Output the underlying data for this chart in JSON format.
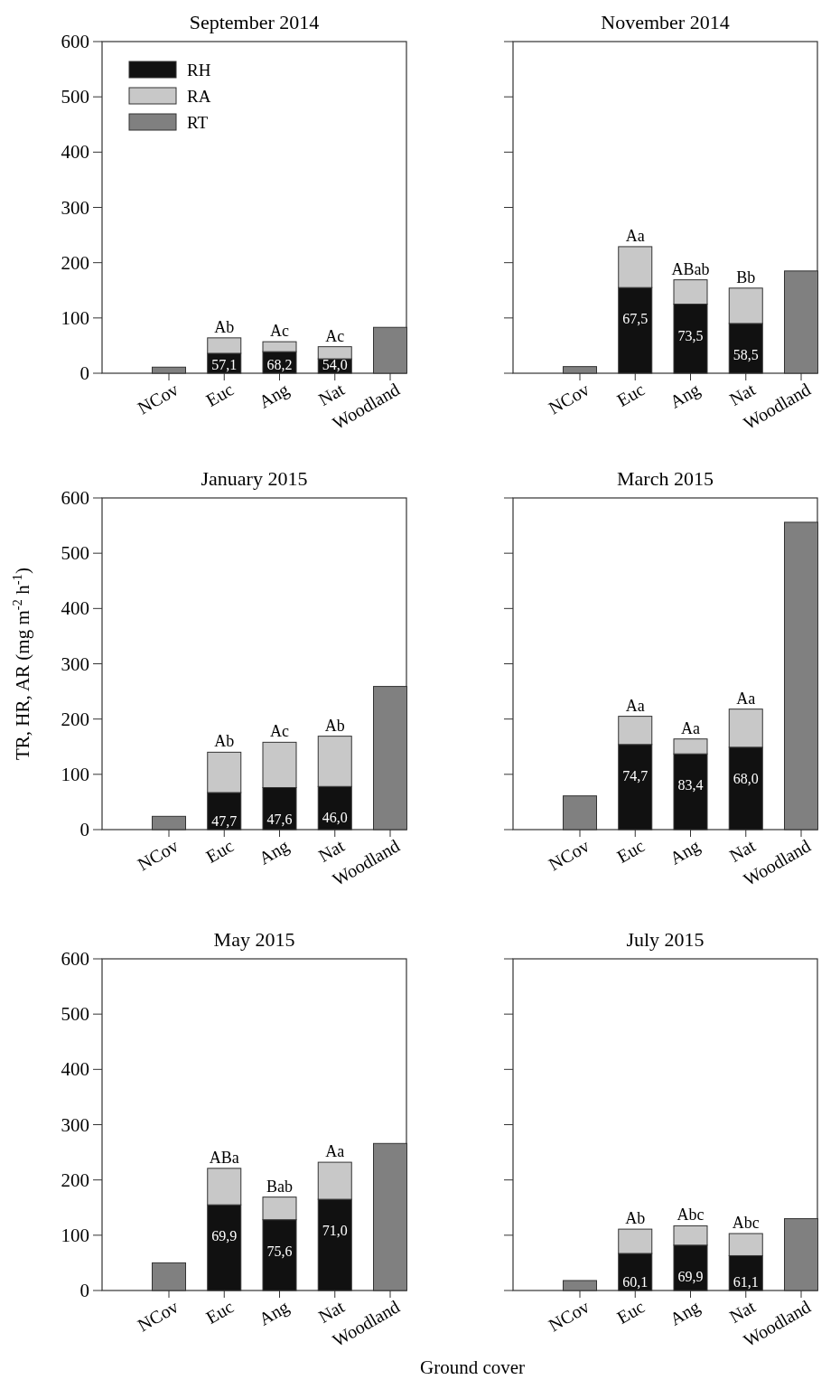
{
  "chart_data": [
    {
      "type": "bar",
      "title": "September 2014",
      "stacked": true,
      "legend": "top left",
      "categories": [
        "NCov",
        "Euc",
        "Ang",
        "Nat",
        "Woodland"
      ],
      "ylim": [
        0,
        600
      ],
      "yticks": [
        0,
        100,
        200,
        300,
        400,
        500,
        600
      ],
      "series": [
        {
          "name": "RH",
          "color": "#111111",
          "values": [
            null,
            36,
            39,
            26,
            null
          ]
        },
        {
          "name": "RA",
          "color": "#c8c8c8",
          "values": [
            null,
            28,
            18,
            22,
            null
          ]
        },
        {
          "name": "RT",
          "color": "#808080",
          "values": [
            11,
            null,
            null,
            null,
            83
          ]
        }
      ],
      "annotations": [
        {
          "text": "Ab",
          "x": "Euc",
          "y": 64
        },
        {
          "text": "Ac",
          "x": "Ang",
          "y": 57
        },
        {
          "text": "Ac",
          "x": "Nat",
          "y": 48
        },
        {
          "text": "57,1",
          "x": "Euc",
          "y": 36
        },
        {
          "text": "68,2",
          "x": "Ang",
          "y": 39
        },
        {
          "text": "54,0",
          "x": "Nat",
          "y": 26
        }
      ]
    },
    {
      "type": "bar",
      "title": "November 2014",
      "stacked": true,
      "tick_labels": "x",
      "categories": [
        "NCov",
        "Euc",
        "Ang",
        "Nat",
        "Woodland"
      ],
      "ylim": [
        0,
        600
      ],
      "yticks": [
        0,
        100,
        200,
        300,
        400,
        500,
        600
      ],
      "series": [
        {
          "color": "#111111",
          "values": [
            null,
            155,
            125,
            90,
            null
          ]
        },
        {
          "color": "#c8c8c8",
          "values": [
            null,
            74,
            44,
            64,
            null
          ]
        },
        {
          "color": "#808080",
          "values": [
            12,
            null,
            null,
            null,
            185
          ]
        }
      ],
      "annotations": [
        {
          "text": "Aa",
          "x": "Euc",
          "y": 229
        },
        {
          "text": "ABab",
          "x": "Ang",
          "y": 169
        },
        {
          "text": "Bb",
          "x": "Nat",
          "y": 154
        },
        {
          "text": "67,5",
          "x": "Euc",
          "y": 155
        },
        {
          "text": "73,5",
          "x": "Ang",
          "y": 125
        },
        {
          "text": "58,5",
          "x": "Nat",
          "y": 90
        }
      ]
    },
    {
      "type": "bar",
      "title": "January 2015",
      "stacked": true,
      "ylabel": "TR, HR, AR (mg m$^{-2}$ h$^{-1}$)",
      "categories": [
        "NCov",
        "Euc",
        "Ang",
        "Nat",
        "Woodland"
      ],
      "ylim": [
        0,
        600
      ],
      "yticks": [
        0,
        100,
        200,
        300,
        400,
        500,
        600
      ],
      "series": [
        {
          "color": "#111111",
          "values": [
            null,
            67,
            76,
            78,
            null
          ]
        },
        {
          "color": "#c8c8c8",
          "values": [
            null,
            73,
            82,
            91,
            null
          ]
        },
        {
          "color": "#808080",
          "values": [
            24,
            null,
            null,
            null,
            259
          ]
        }
      ],
      "annotations": [
        {
          "text": "Ab",
          "x": "Euc",
          "y": 140
        },
        {
          "text": "Ac",
          "x": "Ang",
          "y": 158
        },
        {
          "text": "Ab",
          "x": "Nat",
          "y": 169
        },
        {
          "text": "47,7",
          "x": "Euc",
          "y": 67
        },
        {
          "text": "47,6",
          "x": "Ang",
          "y": 76
        },
        {
          "text": "46,0",
          "x": "Nat",
          "y": 78
        }
      ]
    },
    {
      "type": "bar",
      "title": "March 2015",
      "stacked": true,
      "tick_labels": "x",
      "categories": [
        "NCov",
        "Euc",
        "Ang",
        "Nat",
        "Woodland"
      ],
      "ylim": [
        0,
        600
      ],
      "yticks": [
        0,
        100,
        200,
        300,
        400,
        500,
        600
      ],
      "series": [
        {
          "color": "#111111",
          "values": [
            null,
            154,
            137,
            149,
            null
          ]
        },
        {
          "color": "#c8c8c8",
          "values": [
            null,
            51,
            27,
            69,
            null
          ]
        },
        {
          "color": "#808080",
          "values": [
            61,
            null,
            null,
            null,
            556
          ]
        }
      ],
      "annotations": [
        {
          "text": "Aa",
          "x": "Euc",
          "y": 205
        },
        {
          "text": "Aa",
          "x": "Ang",
          "y": 164
        },
        {
          "text": "Aa",
          "x": "Nat",
          "y": 218
        },
        {
          "text": "74,7",
          "x": "Euc",
          "y": 154
        },
        {
          "text": "83,4",
          "x": "Ang",
          "y": 137
        },
        {
          "text": "68,0",
          "x": "Nat",
          "y": 149
        }
      ]
    },
    {
      "type": "bar",
      "title": "May 2015",
      "stacked": true,
      "xlabel": "Ground cover",
      "categories": [
        "NCov",
        "Euc",
        "Ang",
        "Nat",
        "Woodland"
      ],
      "ylim": [
        0,
        600
      ],
      "yticks": [
        0,
        100,
        200,
        300,
        400,
        500,
        600
      ],
      "series": [
        {
          "color": "#111111",
          "values": [
            null,
            155,
            128,
            165,
            null
          ]
        },
        {
          "color": "#c8c8c8",
          "values": [
            null,
            66,
            41,
            67,
            null
          ]
        },
        {
          "color": "#808080",
          "values": [
            50,
            null,
            null,
            null,
            266
          ]
        }
      ],
      "annotations": [
        {
          "text": "ABa",
          "x": "Euc",
          "y": 221
        },
        {
          "text": "Bab",
          "x": "Ang",
          "y": 169
        },
        {
          "text": "Aa",
          "x": "Nat",
          "y": 232
        },
        {
          "text": "69,9",
          "x": "Euc",
          "y": 155
        },
        {
          "text": "75,6",
          "x": "Ang",
          "y": 128
        },
        {
          "text": "71,0",
          "x": "Nat",
          "y": 165
        }
      ]
    },
    {
      "type": "bar",
      "title": "July 2015",
      "stacked": true,
      "tick_labels": "x",
      "categories": [
        "NCov",
        "Euc",
        "Ang",
        "Nat",
        "Woodland"
      ],
      "ylim": [
        0,
        600
      ],
      "yticks": [
        0,
        100,
        200,
        300,
        400,
        500,
        600
      ],
      "series": [
        {
          "color": "#111111",
          "values": [
            null,
            67,
            82,
            63,
            null
          ]
        },
        {
          "color": "#c8c8c8",
          "values": [
            null,
            44,
            35,
            40,
            null
          ]
        },
        {
          "color": "#808080",
          "values": [
            18,
            null,
            null,
            null,
            130
          ]
        }
      ],
      "annotations": [
        {
          "text": "Ab",
          "x": "Euc",
          "y": 111
        },
        {
          "text": "Abc",
          "x": "Ang",
          "y": 117
        },
        {
          "text": "Abc",
          "x": "Nat",
          "y": 103
        },
        {
          "text": "60,1",
          "x": "Euc",
          "y": 67
        },
        {
          "text": "69,9",
          "x": "Ang",
          "y": 82
        },
        {
          "text": "61,1",
          "x": "Nat",
          "y": 63
        }
      ]
    }
  ]
}
